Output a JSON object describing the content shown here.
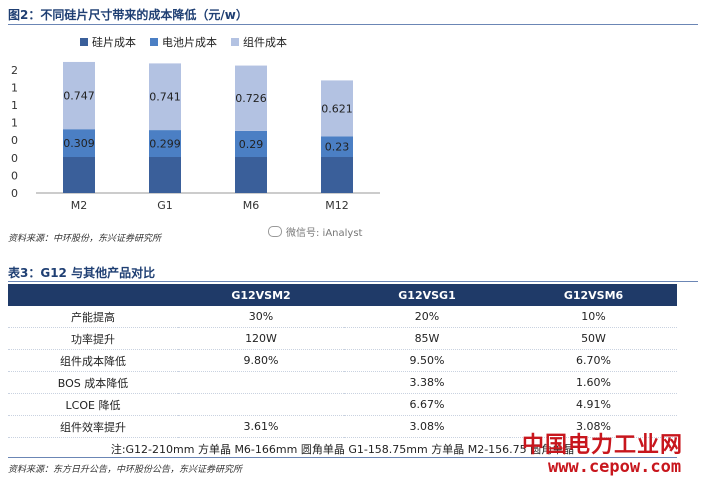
{
  "figure": {
    "title": "图2：不同硅片尺寸带来的成本降低（元/w）",
    "source": "资料来源：中环股份，东兴证券研究所",
    "watermark": "微信号: iAnalyst"
  },
  "chart_data": {
    "type": "bar",
    "stacked": true,
    "categories": [
      "M2",
      "G1",
      "M6",
      "M12"
    ],
    "series": [
      {
        "name": "硅片成本",
        "color": "#3a5f9a",
        "values": [
          null,
          null,
          null,
          null
        ]
      },
      {
        "name": "电池片成本",
        "color": "#4b7fc4",
        "values": [
          0.309,
          0.299,
          0.29,
          0.23
        ]
      },
      {
        "name": "组件成本",
        "color": "#b3c2e2",
        "values": [
          0.747,
          0.741,
          0.726,
          0.621
        ]
      }
    ],
    "y_tick_labels": [
      "0",
      "0",
      "0",
      "0",
      "1",
      "1",
      "1",
      "2"
    ],
    "legend_position": "top",
    "grid": false
  },
  "table": {
    "title": "表3：G12 与其他产品对比",
    "columns": [
      "",
      "G12VSM2",
      "G12VSG1",
      "G12VSM6"
    ],
    "rows": [
      {
        "label": "产能提高",
        "values": [
          "30%",
          "20%",
          "10%"
        ]
      },
      {
        "label": "功率提升",
        "values": [
          "120W",
          "85W",
          "50W"
        ]
      },
      {
        "label": "组件成本降低",
        "values": [
          "9.80%",
          "9.50%",
          "6.70%"
        ]
      },
      {
        "label": "BOS 成本降低",
        "values": [
          "",
          "3.38%",
          "1.60%"
        ]
      },
      {
        "label": "LCOE 降低",
        "values": [
          "",
          "6.67%",
          "4.91%"
        ]
      },
      {
        "label": "组件效率提升",
        "values": [
          "3.61%",
          "3.08%",
          "3.08%"
        ]
      }
    ],
    "note": "注:G12-210mm 方单晶 M6-166mm 圆角单晶 G1-158.75mm 方单晶 M2-156.75 圆角单晶",
    "source": "资料来源：东方日升公告，中环股份公告，东兴证券研究所"
  },
  "watermark": {
    "brand": "中国电力工业网",
    "url": "www.cepow.com"
  }
}
